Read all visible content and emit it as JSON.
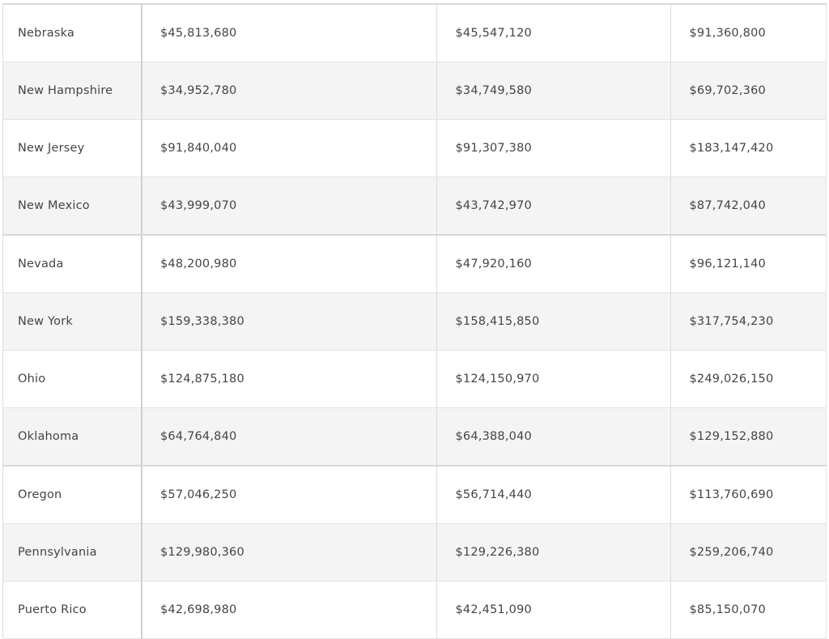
{
  "table": {
    "rows": [
      {
        "state": "Nebraska",
        "c1": "$45,813,680",
        "c2": "$45,547,120",
        "c3": "$91,360,800"
      },
      {
        "state": "New Hampshire",
        "c1": "$34,952,780",
        "c2": "$34,749,580",
        "c3": "$69,702,360"
      },
      {
        "state": "New Jersey",
        "c1": "$91,840,040",
        "c2": "$91,307,380",
        "c3": "$183,147,420"
      },
      {
        "state": "New Mexico",
        "c1": "$43,999,070",
        "c2": "$43,742,970",
        "c3": "$87,742,040"
      },
      {
        "state": "Nevada",
        "c1": "$48,200,980",
        "c2": "$47,920,160",
        "c3": "$96,121,140"
      },
      {
        "state": "New York",
        "c1": "$159,338,380",
        "c2": "$158,415,850",
        "c3": "$317,754,230"
      },
      {
        "state": "Ohio",
        "c1": "$124,875,180",
        "c2": "$124,150,970",
        "c3": "$249,026,150"
      },
      {
        "state": "Oklahoma",
        "c1": "$64,764,840",
        "c2": "$64,388,040",
        "c3": "$129,152,880"
      },
      {
        "state": "Oregon",
        "c1": "$57,046,250",
        "c2": "$56,714,440",
        "c3": "$113,760,690"
      },
      {
        "state": "Pennsylvania",
        "c1": "$129,980,360",
        "c2": "$129,226,380",
        "c3": "$259,206,740"
      },
      {
        "state": "Puerto Rico",
        "c1": "$42,698,980",
        "c2": "$42,451,090",
        "c3": "$85,150,070"
      }
    ]
  }
}
